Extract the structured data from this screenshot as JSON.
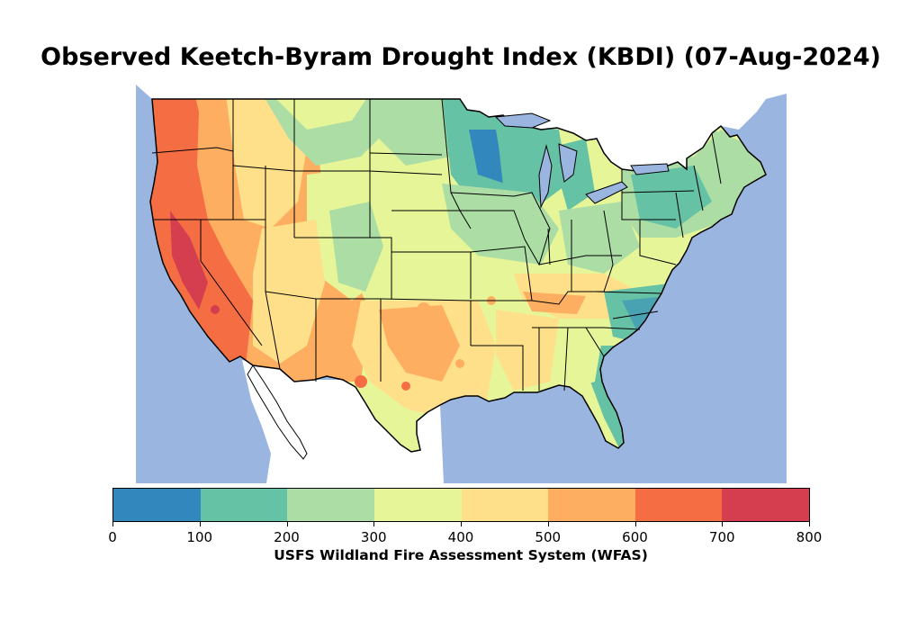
{
  "title": "Observed Keetch-Byram Drought Index (KBDI) (07-Aug-2024)",
  "colorbar": {
    "label": "USFS Wildland Fire Assessment System (WFAS)",
    "ticks": [
      "0",
      "100",
      "200",
      "300",
      "400",
      "500",
      "600",
      "700",
      "800"
    ],
    "bins": [
      {
        "min": 0,
        "max": 100,
        "color": "#3288bd"
      },
      {
        "min": 100,
        "max": 200,
        "color": "#66c2a5"
      },
      {
        "min": 200,
        "max": 300,
        "color": "#abdda4"
      },
      {
        "min": 300,
        "max": 400,
        "color": "#e6f598"
      },
      {
        "min": 400,
        "max": 500,
        "color": "#fee08b"
      },
      {
        "min": 500,
        "max": 600,
        "color": "#fdae61"
      },
      {
        "min": 600,
        "max": 700,
        "color": "#f46d43"
      },
      {
        "min": 700,
        "max": 800,
        "color": "#d53e4f"
      }
    ]
  },
  "map": {
    "region": "Contiguous United States",
    "water_color": "#9ab6e0",
    "land_outside_color": "#ffffff",
    "border_color": "#000000"
  }
}
